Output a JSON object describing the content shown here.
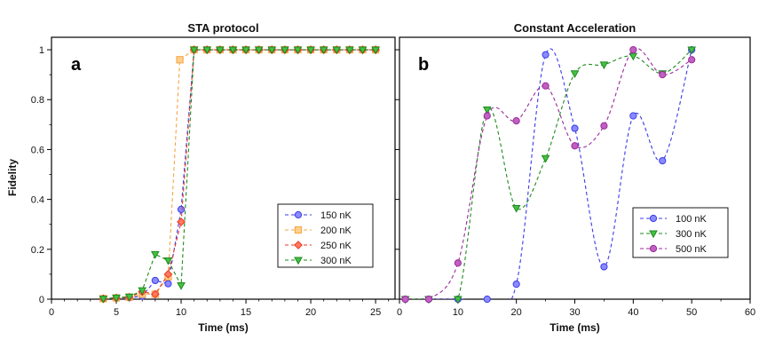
{
  "figure": {
    "ylabel_shared": "Fidelity"
  },
  "chart_data": [
    {
      "type": "line",
      "title": "STA protocol",
      "panel_label": "a",
      "xlabel": "Time (ms)",
      "ylabel": "Fidelity",
      "xlim": [
        0,
        26.5
      ],
      "ylim": [
        0,
        1.05
      ],
      "xticks": [
        0,
        5,
        10,
        15,
        20,
        25
      ],
      "xtick_labels": [
        "0",
        "5",
        "10",
        "15",
        "20",
        "25"
      ],
      "yticks": [
        0,
        0.2,
        0.4,
        0.6,
        0.8,
        1
      ],
      "ytick_labels": [
        "0",
        "0.2",
        "0.4",
        "0.6",
        "0.8",
        "1"
      ],
      "grid": false,
      "legend": "lower-right",
      "x": [
        4,
        5,
        6,
        7,
        8,
        9,
        10,
        11,
        12,
        13,
        14,
        15,
        16,
        17,
        18,
        19,
        20,
        21,
        22,
        23,
        24,
        25
      ],
      "series": [
        {
          "name": "150 nK",
          "color": "#3b3bea",
          "fill": "#8a8aff",
          "marker": "circle",
          "values": [
            0.002,
            0.004,
            0.006,
            0.012,
            0.075,
            0.062,
            0.36,
            1,
            1,
            1,
            1,
            1,
            1,
            1,
            1,
            1,
            1,
            1,
            1,
            1,
            1,
            1
          ]
        },
        {
          "name": "200 nK",
          "color": "#f5a443",
          "fill": "#ffd08a",
          "marker": "square",
          "values": [
            0.002,
            0.005,
            0.008,
            0.02,
            0.02,
            0.09,
            0.96,
            1,
            1,
            1,
            1,
            1,
            1,
            1,
            1,
            1,
            1,
            1,
            1,
            1,
            1,
            1
          ],
          "x_override": [
            4,
            5,
            6,
            7,
            8,
            9,
            9.9,
            11,
            12,
            13,
            14,
            15,
            16,
            17,
            18,
            19,
            20,
            21,
            22,
            23,
            24,
            25
          ]
        },
        {
          "name": "250 nK",
          "color": "#e83a2a",
          "fill": "#ff7a5a",
          "marker": "diamond",
          "values": [
            0.002,
            0.005,
            0.008,
            0.03,
            0.02,
            0.1,
            0.31,
            1,
            1,
            1,
            1,
            1,
            1,
            1,
            1,
            1,
            1,
            1,
            1,
            1,
            1,
            1
          ],
          "x_override": [
            4,
            5,
            6,
            7,
            8,
            9,
            10,
            11,
            12,
            13,
            14,
            15,
            16,
            17,
            18,
            19,
            20,
            21,
            22,
            23,
            24,
            25
          ]
        },
        {
          "name": "300 nK",
          "color": "#1e8a1e",
          "fill": "#44c044",
          "marker": "triangle-down",
          "values": [
            0.002,
            0.006,
            0.01,
            0.035,
            0.18,
            0.155,
            0.055,
            1,
            1,
            1,
            1,
            1,
            1,
            1,
            1,
            1,
            1,
            1,
            1,
            1,
            1,
            1
          ]
        }
      ]
    },
    {
      "type": "line",
      "title": "Constant Acceleration",
      "panel_label": "b",
      "xlabel": "Time (ms)",
      "ylabel": "",
      "xlim": [
        0,
        60
      ],
      "ylim": [
        0,
        1.05
      ],
      "xticks": [
        0,
        10,
        20,
        30,
        40,
        50,
        60
      ],
      "xtick_labels": [
        "0",
        "10",
        "20",
        "30",
        "40",
        "50",
        "60"
      ],
      "yticks": [
        0,
        0.2,
        0.4,
        0.6,
        0.8,
        1
      ],
      "grid": false,
      "legend": "lower-right",
      "x": [
        1,
        5,
        10,
        15,
        20,
        25,
        30,
        35,
        40,
        45,
        50
      ],
      "series": [
        {
          "name": "100 nK",
          "color": "#3b3bea",
          "fill": "#8a8aff",
          "marker": "circle",
          "values": [
            0.0,
            0.0,
            0.0,
            0.0,
            0.06,
            0.98,
            0.685,
            0.13,
            0.735,
            0.555,
            1.0
          ]
        },
        {
          "name": "300 nK",
          "color": "#1e8a1e",
          "fill": "#44c044",
          "marker": "triangle-down",
          "values": [
            0.0,
            0.0,
            0.0,
            0.76,
            0.365,
            0.565,
            0.905,
            0.94,
            0.975,
            0.905,
            1.0
          ]
        },
        {
          "name": "500 nK",
          "color": "#9a2a9a",
          "fill": "#c060c0",
          "marker": "circle",
          "values": [
            0.0,
            0.0,
            0.145,
            0.735,
            0.715,
            0.855,
            0.615,
            0.695,
            1.0,
            0.9,
            0.96
          ]
        }
      ]
    }
  ]
}
